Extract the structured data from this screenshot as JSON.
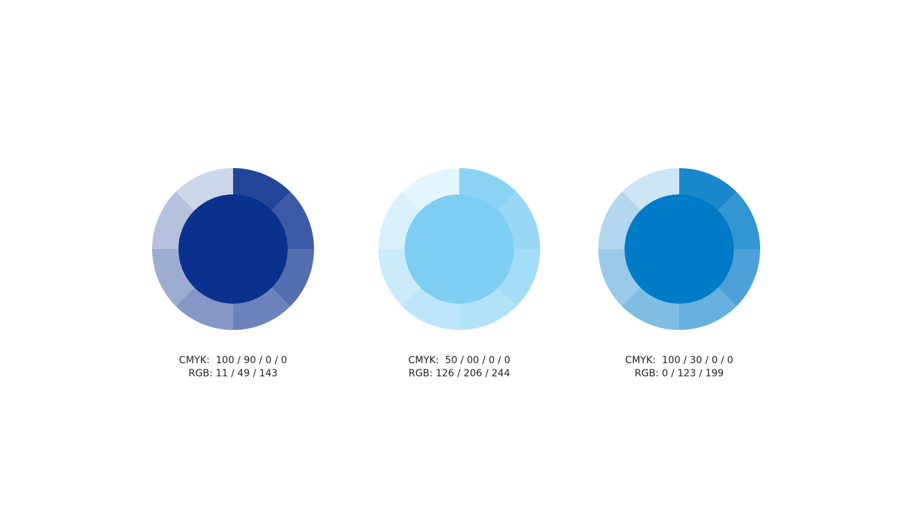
{
  "swatches": [
    {
      "color": "#0b318f",
      "cmyk": "CMYK:  100 / 90 / 0 / 0",
      "rgb": "RGB: 11 / 49 / 143"
    },
    {
      "color": "#7ecef4",
      "cmyk": "CMYK:  50 / 00 / 0 / 0",
      "rgb": "RGB: 126 / 206 / 244"
    },
    {
      "color": "#007bc7",
      "cmyk": "CMYK:  100 / 30 / 0 / 0",
      "rgb": "RGB: 0 / 123 / 199"
    }
  ]
}
